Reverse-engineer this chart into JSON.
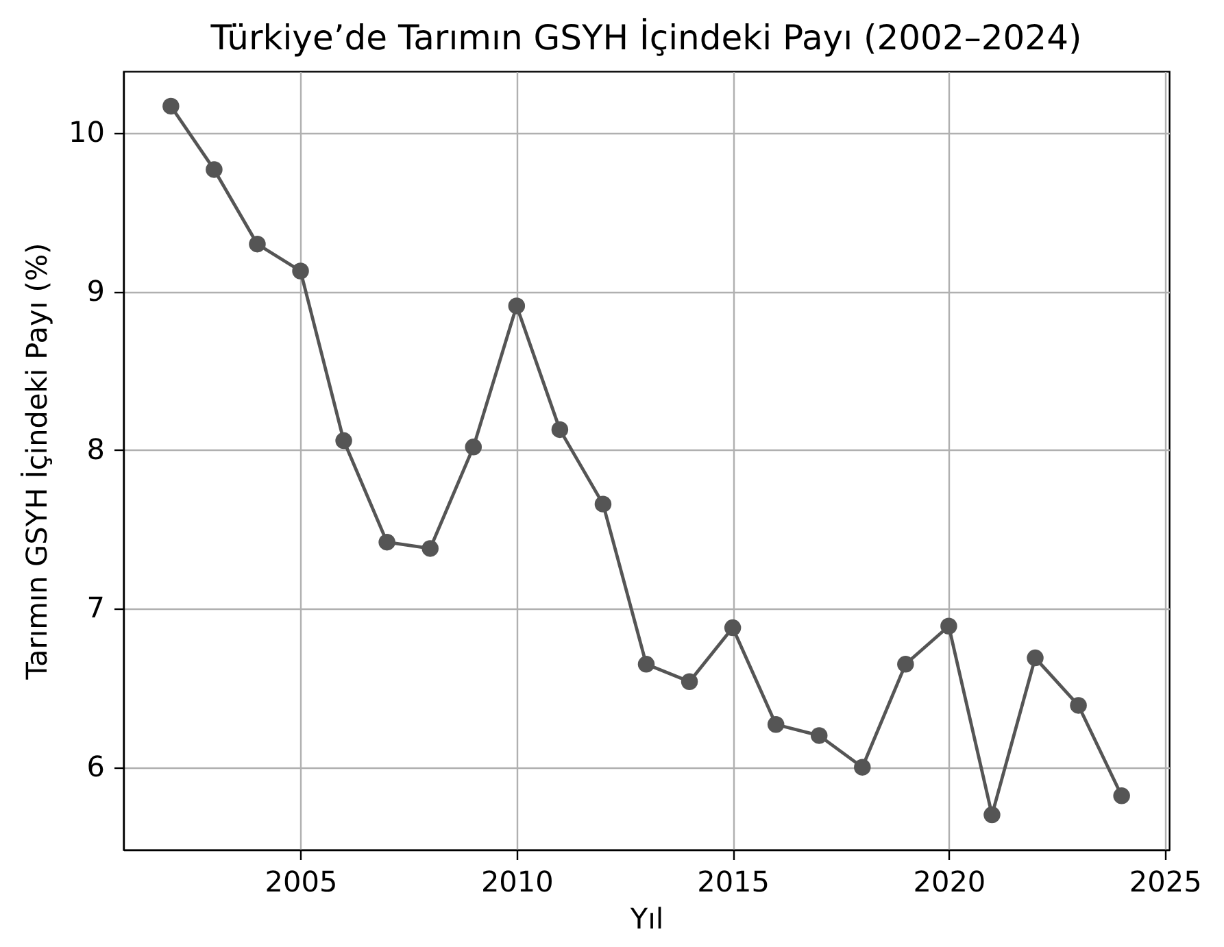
{
  "chart_data": {
    "type": "line",
    "title": "Türkiye’de Tarımın GSYH İçindeki Payı (2002–2024)",
    "xlabel": "Yıl",
    "ylabel": "Tarımın GSYH İçindeki Payı (%)",
    "x": [
      2002,
      2003,
      2004,
      2005,
      2006,
      2007,
      2008,
      2009,
      2010,
      2011,
      2012,
      2013,
      2014,
      2015,
      2016,
      2017,
      2018,
      2019,
      2020,
      2021,
      2022,
      2023,
      2024
    ],
    "series": [
      {
        "color": "#555555",
        "values": [
          10.17,
          9.77,
          9.3,
          9.13,
          8.06,
          7.42,
          7.38,
          8.02,
          8.91,
          8.13,
          7.66,
          6.65,
          6.54,
          6.88,
          6.27,
          6.2,
          6.0,
          6.65,
          6.89,
          5.7,
          6.69,
          6.39,
          5.82
        ]
      }
    ],
    "xlim": [
      2000.9,
      2025.1
    ],
    "ylim": [
      5.48,
      10.39
    ],
    "xticks": [
      2005,
      2010,
      2015,
      2020,
      2025
    ],
    "yticks": [
      6,
      7,
      8,
      9,
      10
    ],
    "grid": true,
    "marker": "circle",
    "line_style": "solid"
  }
}
